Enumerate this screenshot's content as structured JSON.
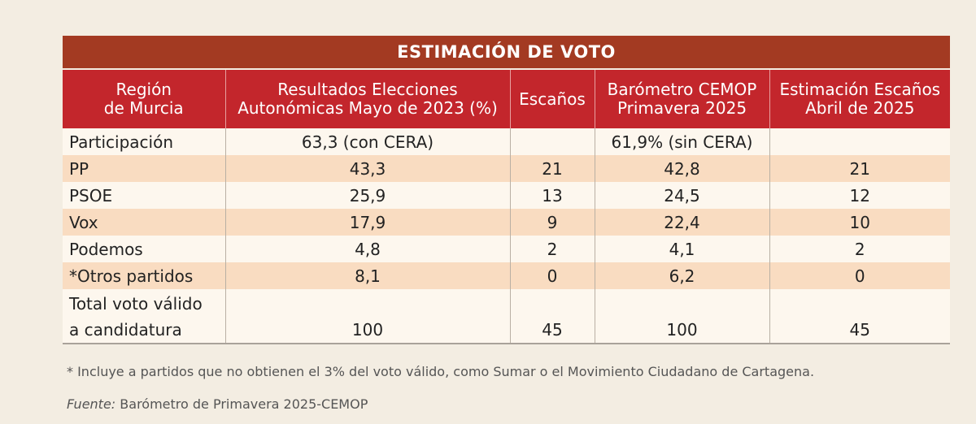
{
  "table": {
    "title": "ESTIMACIÓN DE VOTO",
    "header": [
      "Región\nde Murcia",
      "Resultados Elecciones\nAutonómicas Mayo de 2023 (%)",
      "Escaños",
      "Barómetro CEMOP\nPrimavera 2025",
      "Estimación Escaños\nAbril de 2025"
    ],
    "rows": [
      [
        "Participación",
        "63,3 (con CERA)",
        null,
        "61,9% (sin CERA)",
        null
      ],
      [
        "PP",
        "43,3",
        "21",
        "42,8",
        "21"
      ],
      [
        "PSOE",
        "25,9",
        "13",
        "24,5",
        "12"
      ],
      [
        "Vox",
        "17,9",
        "9",
        "22,4",
        "10"
      ],
      [
        "Podemos",
        "4,8",
        "2",
        "4,1",
        "2"
      ],
      [
        "*Otros partidos",
        "8,1",
        "0",
        "6,2",
        "0"
      ],
      [
        "Total voto válido\na candidatura",
        "100",
        "45",
        "100",
        "45"
      ]
    ]
  },
  "footnote": "* Incluye a partidos que no obtienen el 3% del voto válido, como Sumar o el Movimiento Ciudadano de Cartagena.",
  "source": {
    "label": "Fuente:",
    "text": "Barómetro de Primavera 2025-CEMOP"
  }
}
